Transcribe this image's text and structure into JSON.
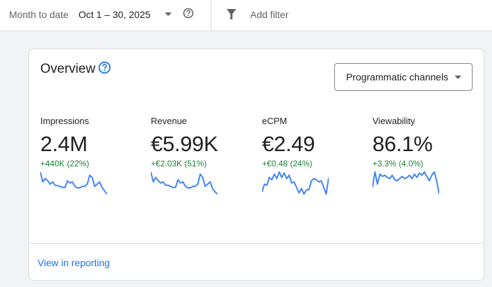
{
  "filter_bar": {
    "range_label": "Month to date",
    "range_value": "Oct 1 – 30, 2025",
    "add_filter": "Add filter"
  },
  "overview": {
    "title": "Overview",
    "channel_select": "Programmatic channels",
    "footer_link": "View in reporting",
    "metrics": [
      {
        "label": "Impressions",
        "value": "2.4M",
        "delta": "+440K (22%)",
        "trend": [
          1,
          0.55,
          0.7,
          0.6,
          0.45,
          0.55,
          0.4,
          0.38,
          0.35,
          0.3,
          0.3,
          0.6,
          0.5,
          0.55,
          0.35,
          0.28,
          0.28,
          0.35,
          0.35,
          0.45,
          0.85,
          0.75,
          0.35,
          0.45,
          0.55,
          0.3,
          0.15,
          0
        ]
      },
      {
        "label": "Revenue",
        "value": "€5.99K",
        "delta": "+€2.03K (51%)",
        "trend": [
          1,
          0.55,
          0.75,
          0.6,
          0.5,
          0.55,
          0.4,
          0.4,
          0.35,
          0.3,
          0.3,
          0.65,
          0.5,
          0.55,
          0.35,
          0.28,
          0.28,
          0.35,
          0.35,
          0.45,
          0.9,
          0.75,
          0.35,
          0.45,
          0.55,
          0.25,
          0.1,
          0
        ]
      },
      {
        "label": "eCPM",
        "value": "€2.49",
        "delta": "+€0.48 (24%)",
        "trend": [
          0.1,
          0.45,
          0.4,
          0.75,
          0.65,
          0.9,
          0.7,
          1,
          0.75,
          0.95,
          0.7,
          0.85,
          0.5,
          0.55,
          0.3,
          0.05,
          0.25,
          0,
          0.2,
          0.2,
          0.6,
          0.7,
          0.65,
          0.55,
          0.6,
          0.3,
          0,
          0.75
        ]
      },
      {
        "label": "Viewability",
        "value": "86.1%",
        "delta": "+3.3% (4.0%)",
        "trend": [
          0.3,
          1,
          0.45,
          0.9,
          0.8,
          0.85,
          0.75,
          0.7,
          0.85,
          0.65,
          0.6,
          0.7,
          0.8,
          0.7,
          0.75,
          0.85,
          0.7,
          0.9,
          0.75,
          0.95,
          0.85,
          1,
          0.8,
          0.6,
          0.85,
          1,
          0.6,
          0
        ]
      }
    ]
  },
  "colors": {
    "accent": "#1a73e8",
    "positive": "#188038",
    "sparkline": "#4285f4"
  }
}
